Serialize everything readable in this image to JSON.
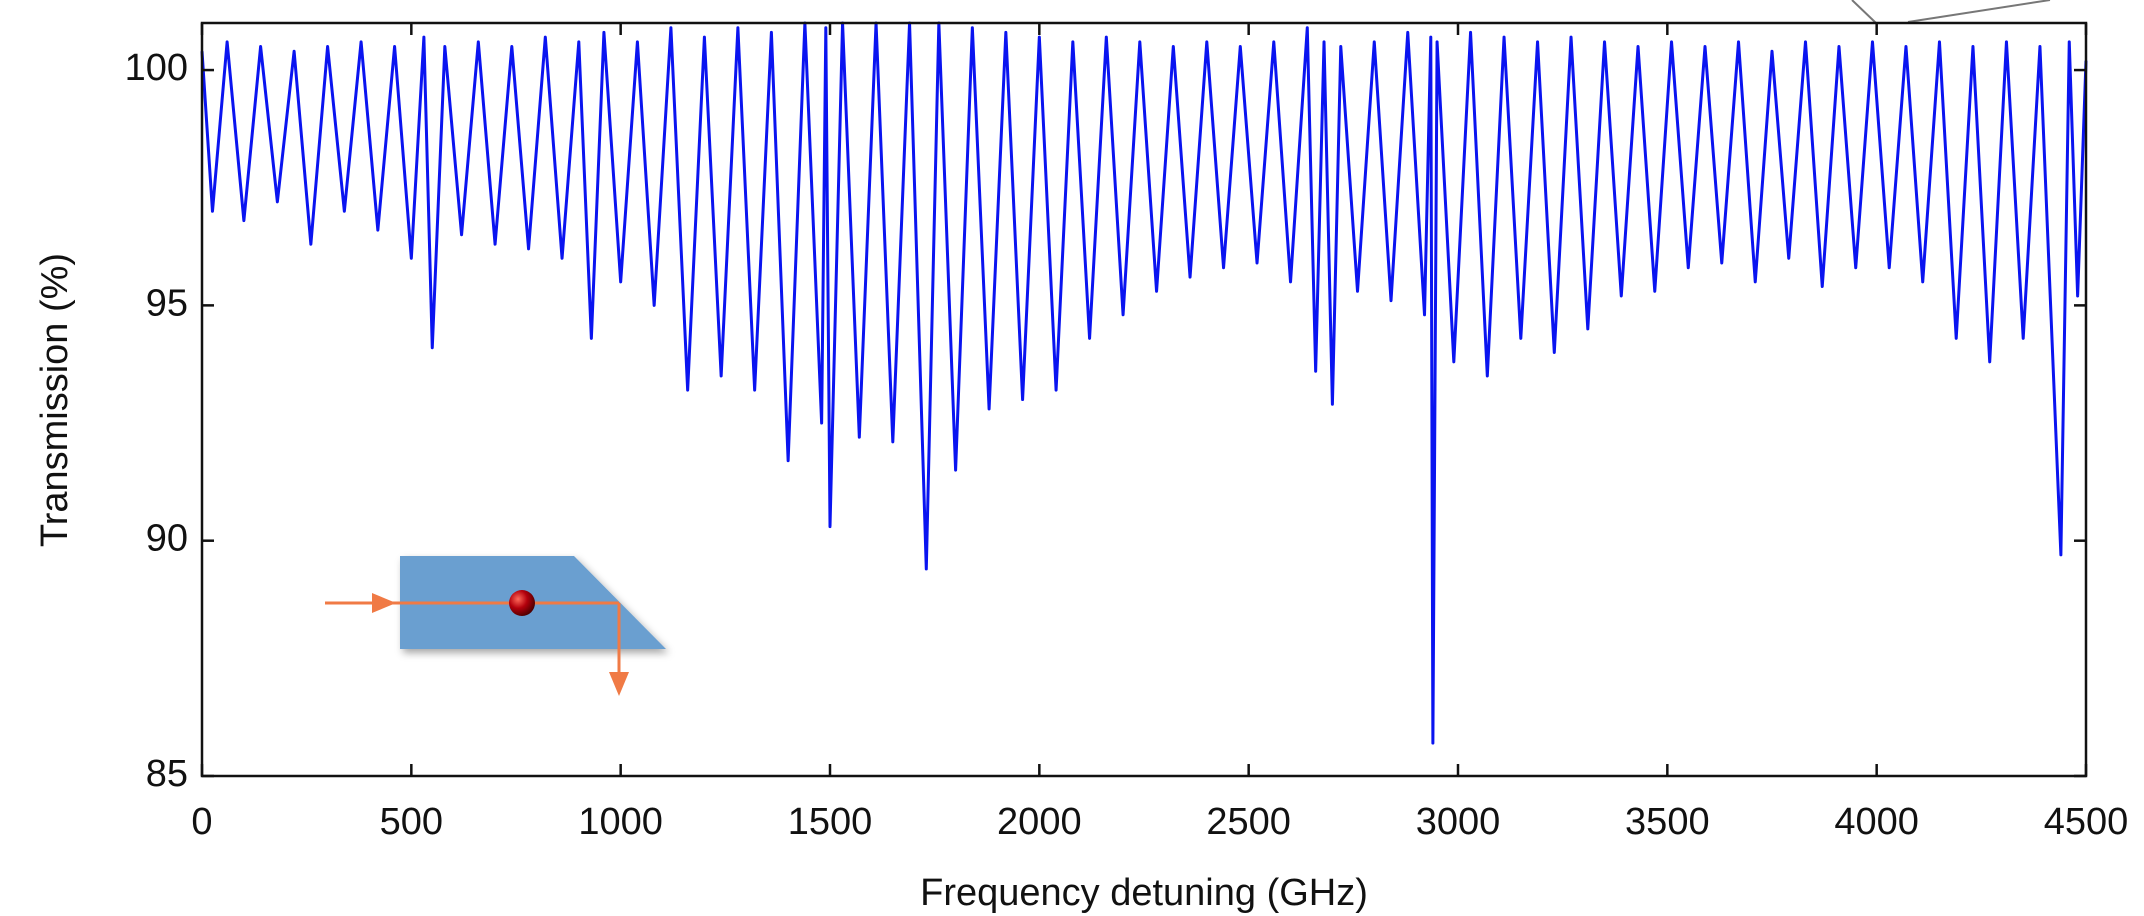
{
  "chart_data": {
    "type": "line",
    "x_label": "Frequency detuning (GHz)",
    "y_label": "Transmission (%)",
    "x": [
      0,
      25,
      60,
      100,
      140,
      180,
      220,
      260,
      300,
      340,
      380,
      420,
      460,
      500,
      530,
      550,
      580,
      620,
      660,
      700,
      740,
      780,
      820,
      860,
      900,
      930,
      960,
      1000,
      1040,
      1080,
      1120,
      1160,
      1200,
      1240,
      1280,
      1320,
      1360,
      1400,
      1440,
      1480,
      1490,
      1500,
      1530,
      1570,
      1610,
      1650,
      1690,
      1730,
      1760,
      1800,
      1840,
      1880,
      1920,
      1960,
      2000,
      2040,
      2080,
      2120,
      2160,
      2200,
      2240,
      2280,
      2320,
      2360,
      2400,
      2440,
      2480,
      2520,
      2560,
      2600,
      2640,
      2660,
      2680,
      2700,
      2720,
      2760,
      2800,
      2840,
      2880,
      2920,
      2935,
      2940,
      2950,
      2990,
      3030,
      3070,
      3110,
      3150,
      3190,
      3230,
      3270,
      3310,
      3350,
      3390,
      3430,
      3470,
      3510,
      3550,
      3590,
      3630,
      3670,
      3710,
      3750,
      3790,
      3830,
      3870,
      3910,
      3950,
      3990,
      4030,
      4070,
      4110,
      4150,
      4190,
      4230,
      4270,
      4310,
      4350,
      4390,
      4440,
      4460,
      4480,
      4500
    ],
    "series": [
      {
        "color": "#0a14f0",
        "values": [
          100.4,
          97.0,
          100.6,
          96.8,
          100.5,
          97.2,
          100.4,
          96.3,
          100.5,
          97.0,
          100.6,
          96.6,
          100.5,
          96.0,
          100.7,
          94.1,
          100.5,
          96.5,
          100.6,
          96.3,
          100.5,
          96.2,
          100.7,
          96.0,
          100.6,
          94.3,
          100.8,
          95.5,
          100.6,
          95.0,
          100.9,
          93.2,
          100.7,
          93.5,
          100.9,
          93.2,
          100.8,
          91.7,
          101.0,
          92.5,
          100.9,
          90.3,
          101.0,
          92.2,
          101.0,
          92.1,
          101.0,
          89.4,
          101.0,
          91.5,
          100.9,
          92.8,
          100.8,
          93.0,
          100.7,
          93.2,
          100.6,
          94.3,
          100.7,
          94.8,
          100.6,
          95.3,
          100.5,
          95.6,
          100.6,
          95.8,
          100.5,
          95.9,
          100.6,
          95.5,
          100.9,
          93.6,
          100.6,
          92.9,
          100.5,
          95.3,
          100.6,
          95.1,
          100.8,
          94.8,
          100.7,
          85.7,
          100.6,
          93.8,
          100.8,
          93.5,
          100.7,
          94.3,
          100.6,
          94.0,
          100.7,
          94.5,
          100.6,
          95.2,
          100.5,
          95.3,
          100.6,
          95.8,
          100.5,
          95.9,
          100.6,
          95.5,
          100.4,
          96.0,
          100.6,
          95.4,
          100.5,
          95.8,
          100.6,
          95.8,
          100.5,
          95.5,
          100.6,
          94.3,
          100.5,
          93.8,
          100.6,
          94.3,
          100.5,
          89.7,
          100.6,
          95.2,
          100.2
        ]
      }
    ],
    "xlim": [
      0,
      4500
    ],
    "xticks": [
      0,
      500,
      1000,
      1500,
      2000,
      2500,
      3000,
      3500,
      4000,
      4500
    ],
    "ylim": [
      85,
      101
    ],
    "yticks": [
      85,
      90,
      95,
      100
    ],
    "grid": false
  }
}
